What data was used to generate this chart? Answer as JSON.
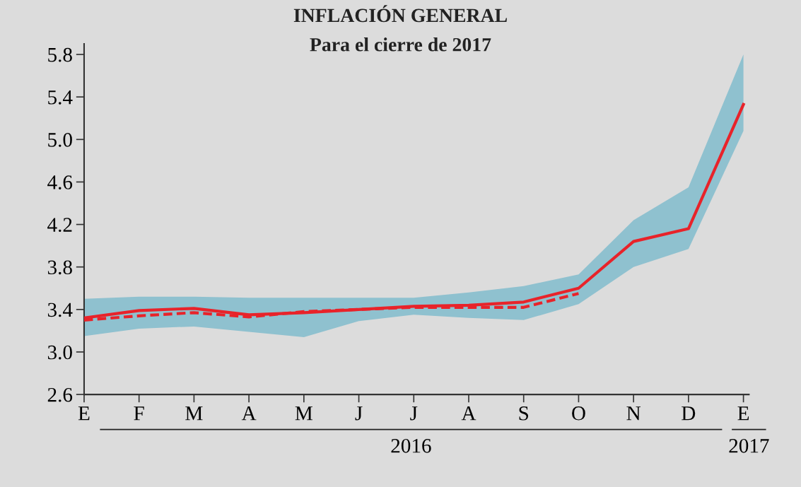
{
  "chart_data": {
    "type": "line",
    "title": "INFLACIÓN GENERAL",
    "subtitle": "Para el cierre de 2017",
    "categories": [
      "E",
      "F",
      "M",
      "A",
      "M",
      "J",
      "J",
      "A",
      "S",
      "O",
      "N",
      "D",
      "E"
    ],
    "series": [
      {
        "color": "#e8232a",
        "line_style": "solid",
        "values": [
          3.32,
          3.39,
          3.41,
          3.35,
          3.37,
          3.4,
          3.43,
          3.44,
          3.47,
          3.6,
          4.04,
          4.16,
          5.33
        ],
        "lower": [
          3.15,
          3.22,
          3.24,
          3.19,
          3.14,
          3.29,
          3.35,
          3.32,
          3.3,
          3.45,
          3.8,
          3.97,
          5.08
        ],
        "upper": [
          3.5,
          3.52,
          3.52,
          3.51,
          3.51,
          3.51,
          3.51,
          3.56,
          3.62,
          3.73,
          4.24,
          4.55,
          5.8
        ]
      },
      {
        "color": "#e8232a",
        "line_style": "dashed",
        "values": [
          3.3,
          3.34,
          3.37,
          3.33,
          3.38,
          3.4,
          3.42,
          3.42,
          3.42,
          3.55,
          null,
          null,
          null
        ]
      }
    ],
    "ylim": [
      2.6,
      5.9
    ],
    "yticks": [
      2.6,
      {
        "value": 3.0,
        "label": "3.0"
      },
      3.4,
      3.8,
      4.2,
      4.6,
      {
        "value": 5.0,
        "label": "5.0"
      },
      5.4,
      5.8
    ],
    "annotations": [
      "2016",
      "2017"
    ],
    "grid": false,
    "legend": false,
    "marker": "none"
  }
}
